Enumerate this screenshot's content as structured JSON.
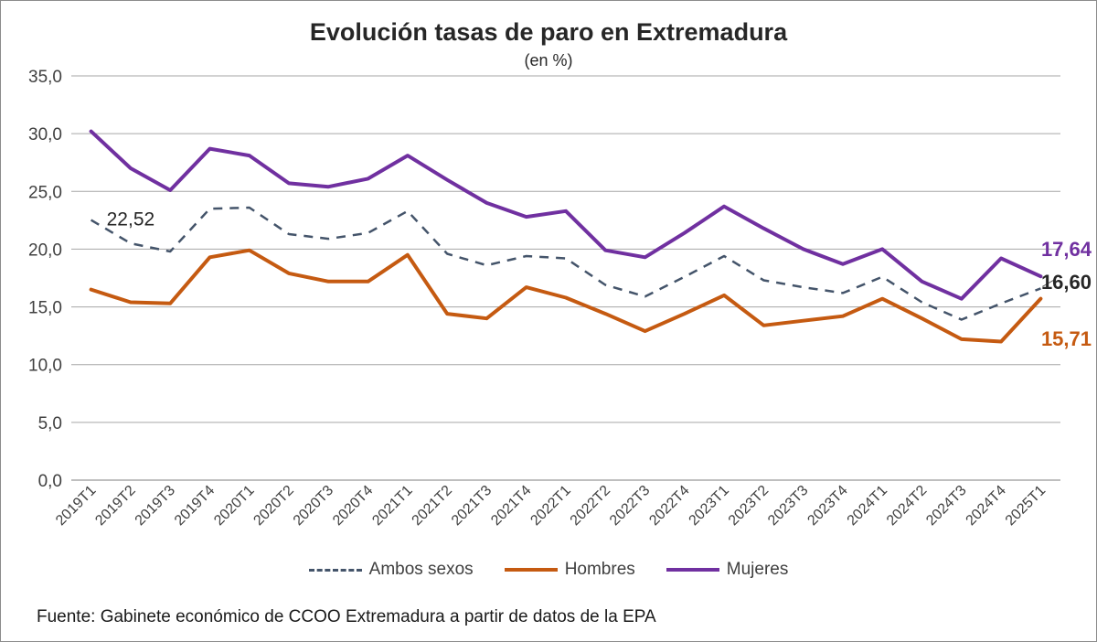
{
  "chart_data": {
    "type": "line",
    "title": "Evolución tasas de paro en Extremadura",
    "subtitle": "(en %)",
    "xlabel": "",
    "ylabel": "",
    "ylim": [
      0,
      35
    ],
    "yticks": [
      "0,0",
      "5,0",
      "10,0",
      "15,0",
      "20,0",
      "25,0",
      "30,0",
      "35,0"
    ],
    "grid": true,
    "legend_position": "bottom",
    "categories": [
      "2019T1",
      "2019T2",
      "2019T3",
      "2019T4",
      "2020T1",
      "2020T2",
      "2020T3",
      "2020T4",
      "2021T1",
      "2021T2",
      "2021T3",
      "2021T4",
      "2022T1",
      "2022T2",
      "2022T3",
      "2022T4",
      "2023T1",
      "2023T2",
      "2023T3",
      "2023T4",
      "2024T1",
      "2024T2",
      "2024T3",
      "2024T4",
      "2025T1"
    ],
    "series": [
      {
        "name": "Ambos sexos",
        "color": "#44546a",
        "style": "dashed",
        "values": [
          22.52,
          20.5,
          19.8,
          23.5,
          23.6,
          21.3,
          20.9,
          21.4,
          23.3,
          19.6,
          18.6,
          19.4,
          19.2,
          16.9,
          15.9,
          17.6,
          19.4,
          17.3,
          16.7,
          16.2,
          17.6,
          15.4,
          13.9,
          15.3,
          16.6
        ]
      },
      {
        "name": "Hombres",
        "color": "#c55a11",
        "style": "solid",
        "values": [
          16.5,
          15.4,
          15.3,
          19.3,
          19.9,
          17.9,
          17.2,
          17.2,
          19.5,
          14.4,
          14.0,
          16.7,
          15.8,
          14.4,
          12.9,
          14.4,
          16.0,
          13.4,
          13.8,
          14.2,
          15.7,
          14.0,
          12.2,
          12.0,
          15.71
        ]
      },
      {
        "name": "Mujeres",
        "color": "#7030a0",
        "style": "solid",
        "values": [
          30.2,
          27.0,
          25.1,
          28.7,
          28.1,
          25.7,
          25.4,
          26.1,
          28.1,
          26.0,
          24.0,
          22.8,
          23.3,
          19.9,
          19.3,
          21.4,
          23.7,
          21.8,
          20.0,
          18.7,
          20.0,
          17.2,
          15.7,
          19.2,
          17.64
        ]
      }
    ],
    "annotations": {
      "first_ambos": "22,52",
      "last_mujeres": "17,64",
      "last_ambos": "16,60",
      "last_hombres": "15,71"
    }
  },
  "source_note": "Fuente: Gabinete económico de CCOO Extremadura a partir de datos de la EPA"
}
